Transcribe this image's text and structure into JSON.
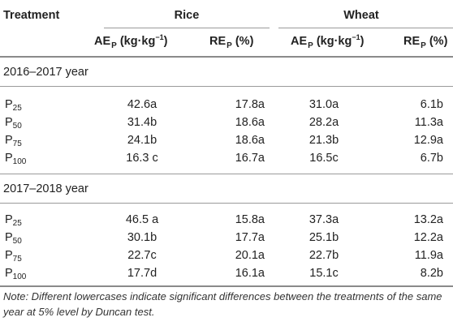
{
  "header": {
    "treatment": "Treatment",
    "groups": [
      "Rice",
      "Wheat"
    ],
    "ae_main": "AE",
    "ae_sub": "P",
    "ae_unit_pre": " (kg·kg",
    "ae_unit_sup": "−1",
    "ae_unit_post": ")",
    "re_main": "RE",
    "re_sub": "P",
    "re_unit": " (%)"
  },
  "sections": [
    {
      "title": "2016–2017 year",
      "rows": [
        {
          "t_main": "P",
          "t_sub": "25",
          "rice_ae": "42.6a",
          "rice_re": "17.8a",
          "wheat_ae": "31.0a",
          "wheat_re": "6.1b"
        },
        {
          "t_main": "P",
          "t_sub": "50",
          "rice_ae": "31.4b",
          "rice_re": "18.6a",
          "wheat_ae": "28.2a",
          "wheat_re": "11.3a"
        },
        {
          "t_main": "P",
          "t_sub": "75",
          "rice_ae": "24.1b",
          "rice_re": "18.6a",
          "wheat_ae": "21.3b",
          "wheat_re": "12.9a"
        },
        {
          "t_main": "P",
          "t_sub": "100",
          "rice_ae": "16.3 c",
          "rice_re": "16.7a",
          "wheat_ae": "16.5c",
          "wheat_re": "6.7b"
        }
      ]
    },
    {
      "title": "2017–2018 year",
      "rows": [
        {
          "t_main": "P",
          "t_sub": "25",
          "rice_ae": "46.5 a",
          "rice_re": "15.8a",
          "wheat_ae": "37.3a",
          "wheat_re": "13.2a"
        },
        {
          "t_main": "P",
          "t_sub": "50",
          "rice_ae": "30.1b",
          "rice_re": "17.7a",
          "wheat_ae": "25.1b",
          "wheat_re": "12.2a"
        },
        {
          "t_main": "P",
          "t_sub": "75",
          "rice_ae": "22.7c",
          "rice_re": "20.1a",
          "wheat_ae": "22.7b",
          "wheat_re": "11.9a"
        },
        {
          "t_main": "P",
          "t_sub": "100",
          "rice_ae": "17.7d",
          "rice_re": "16.1a",
          "wheat_ae": "15.1c",
          "wheat_re": "8.2b"
        }
      ]
    }
  ],
  "note": "Note: Different lowercases indicate significant differences between the treatments of the same year at 5% level by Duncan test."
}
